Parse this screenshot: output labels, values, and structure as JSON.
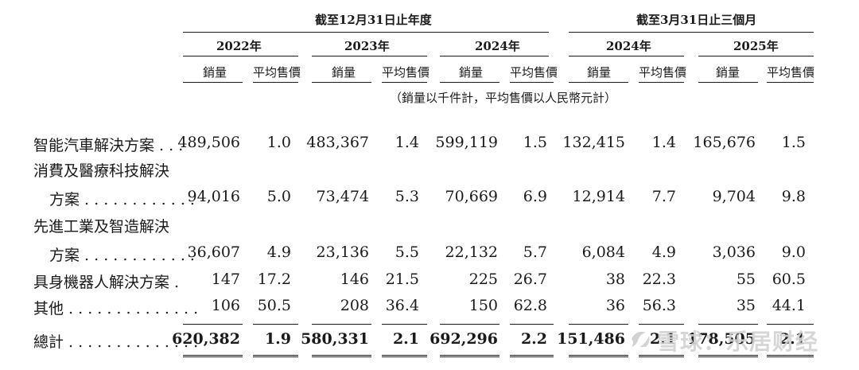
{
  "header": {
    "group_year": "截至12月31日止年度",
    "group_quarter": "截至3月31日止三個月",
    "years": [
      "2022年",
      "2023年",
      "2024年",
      "2024年",
      "2025年"
    ],
    "col_sales": "銷量",
    "col_price": "平均售價",
    "unit_note": "（銷量以千件計，平均售價以人民幣元計）"
  },
  "rows": [
    {
      "label_line1": "智能汽車解決方案 . . .",
      "label_line2": "",
      "values": [
        "489,506",
        "1.0",
        "483,367",
        "1.4",
        "599,119",
        "1.5",
        "132,415",
        "1.4",
        "165,676",
        "1.5"
      ]
    },
    {
      "label_line1": "消費及醫療科技解決",
      "label_line2": "方案 . . . . . . . . . . . .",
      "values": [
        "94,016",
        "5.0",
        "73,474",
        "5.3",
        "70,669",
        "6.9",
        "12,914",
        "7.7",
        "9,704",
        "9.8"
      ]
    },
    {
      "label_line1": "先進工業及智造解決",
      "label_line2": "方案 . . . . . . . . . . . .",
      "values": [
        "36,607",
        "4.9",
        "23,136",
        "5.5",
        "22,132",
        "5.7",
        "6,084",
        "4.9",
        "3,036",
        "9.0"
      ]
    },
    {
      "label_line1": "具身機器人解決方案 .",
      "label_line2": "",
      "values": [
        "147",
        "17.2",
        "146",
        "21.5",
        "225",
        "26.7",
        "38",
        "22.3",
        "55",
        "60.5"
      ]
    },
    {
      "label_line1": "其他 . . . . . . . . . . . . . .",
      "label_line2": "",
      "values": [
        "106",
        "50.5",
        "208",
        "36.4",
        "150",
        "62.8",
        "36",
        "56.3",
        "35",
        "44.1"
      ]
    }
  ],
  "total": {
    "label": "總計 . . . . . . . . . . . . . .",
    "values": [
      "620,382",
      "1.9",
      "580,331",
      "2.1",
      "692,296",
      "2.2",
      "151,486",
      "2.1",
      "178,505",
      "2.1"
    ]
  },
  "watermark": "雪球：乐居财经"
}
